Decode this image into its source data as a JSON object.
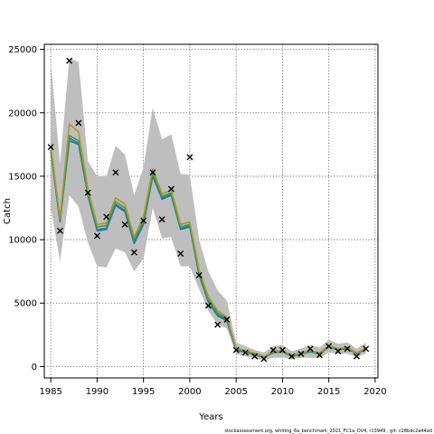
{
  "chart_data": {
    "type": "line",
    "xlabel": "Years",
    "ylabel": "Catch",
    "xlim": [
      1984.3,
      2020.3
    ],
    "ylim": [
      -900,
      25400
    ],
    "x_ticks": [
      1985,
      1990,
      1995,
      2000,
      2005,
      2010,
      2015,
      2020
    ],
    "y_ticks": [
      0,
      5000,
      10000,
      15000,
      20000,
      25000
    ],
    "grid": true,
    "grid_style": "dotted",
    "colors": {
      "band": "#bebebe",
      "line_dark": "#1b7f8f",
      "line_blue": "#3a6fc0",
      "line_green": "#3aa03a",
      "line_olive": "#a89a2a",
      "observed": "#000000"
    },
    "years": [
      1985,
      1986,
      1987,
      1988,
      1989,
      1990,
      1991,
      1992,
      1993,
      1994,
      1995,
      1996,
      1997,
      1998,
      1999,
      2000,
      2001,
      2002,
      2003,
      2004,
      2005,
      2006,
      2007,
      2008,
      2009,
      2010,
      2011,
      2012,
      2013,
      2014,
      2015,
      2016,
      2017,
      2018,
      2019
    ],
    "band_lower": [
      12500,
      8300,
      13500,
      12600,
      9800,
      7900,
      7800,
      9300,
      9000,
      7500,
      8500,
      12500,
      10100,
      10200,
      7900,
      7900,
      6100,
      4400,
      3300,
      3000,
      1000,
      800,
      650,
      500,
      700,
      700,
      600,
      700,
      700,
      700,
      1100,
      1000,
      1000,
      750,
      1000
    ],
    "band_upper": [
      24000,
      16000,
      24300,
      24000,
      16200,
      15000,
      15000,
      17400,
      16700,
      13500,
      15700,
      20400,
      17900,
      18300,
      15200,
      15100,
      10000,
      7500,
      6000,
      5200,
      1900,
      1600,
      1300,
      1100,
      1600,
      1700,
      1200,
      1400,
      1700,
      1500,
      2100,
      1800,
      1900,
      1400,
      1900
    ],
    "series": [
      {
        "values": [
          16900,
          11400,
          17800,
          17500,
          13500,
          10700,
          10800,
          12700,
          12200,
          9700,
          11200,
          15000,
          13200,
          13500,
          10800,
          11000,
          7200,
          5100,
          4000,
          3600,
          1300,
          1100,
          950,
          700,
          1100,
          1150,
          800,
          1000,
          1150,
          1000,
          1550,
          1300,
          1400,
          1000,
          1350
        ]
      },
      {
        "values": [
          17000,
          11500,
          18000,
          17600,
          13600,
          10800,
          10900,
          12800,
          12300,
          9800,
          11300,
          15100,
          13300,
          13600,
          10900,
          11100,
          7300,
          5200,
          4100,
          3700,
          1350,
          1150,
          980,
          720,
          1120,
          1170,
          820,
          1020,
          1170,
          1020,
          1580,
          1320,
          1430,
          1020,
          1380
        ]
      },
      {
        "values": [
          17100,
          11600,
          18200,
          17800,
          13700,
          11000,
          11100,
          13000,
          12500,
          10000,
          11500,
          15300,
          13400,
          13700,
          11000,
          11200,
          7400,
          5300,
          4200,
          3800,
          1400,
          1200,
          1000,
          750,
          1150,
          1200,
          850,
          1050,
          1200,
          1050,
          1600,
          1350,
          1450,
          1050,
          1400
        ]
      },
      {
        "values": [
          17400,
          11700,
          19100,
          18500,
          14000,
          11200,
          11300,
          13300,
          12800,
          10200,
          11800,
          15600,
          13600,
          13900,
          11200,
          11400,
          7600,
          5500,
          4400,
          3900,
          1450,
          1250,
          1050,
          780,
          1200,
          1250,
          880,
          1080,
          1250,
          1080,
          1650,
          1400,
          1500,
          1080,
          1450
        ]
      }
    ],
    "observed_points": {
      "x": [
        1985,
        1986,
        1987,
        1988,
        1989,
        1990,
        1991,
        1992,
        1993,
        1994,
        1995,
        1996,
        1997,
        1998,
        1999,
        2000,
        2001,
        2002,
        2003,
        2004,
        2005,
        2006,
        2007,
        2008,
        2009,
        2010,
        2011,
        2012,
        2013,
        2014,
        2015,
        2016,
        2017,
        2018,
        2019
      ],
      "y": [
        17300,
        10700,
        24100,
        19200,
        13700,
        10300,
        11800,
        15300,
        11200,
        9000,
        11500,
        15300,
        11600,
        14000,
        8900,
        16500,
        7200,
        4800,
        3300,
        3700,
        1300,
        1100,
        800,
        600,
        1300,
        1300,
        800,
        1000,
        1400,
        900,
        1600,
        1200,
        1400,
        800,
        1400
      ]
    }
  },
  "footer_text": "stockassessment.org, whiting_6a_benchmark_2021_FC1a_OV4, r13949 , git: c28bdc2a44ad"
}
